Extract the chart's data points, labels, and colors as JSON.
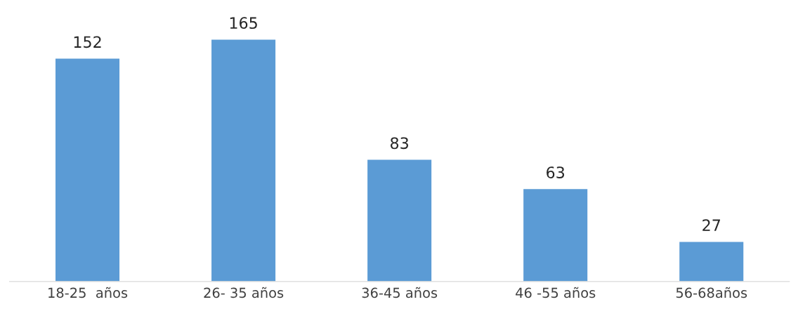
{
  "chart_data": {
    "type": "bar",
    "categories": [
      "18-25  años",
      "26- 35 años",
      "36-45 años",
      "46 -55 años",
      "56-68años"
    ],
    "values": [
      152,
      165,
      83,
      63,
      27
    ],
    "color": "#5b9bd5",
    "data_labels": true,
    "tick_labels": "x"
  }
}
